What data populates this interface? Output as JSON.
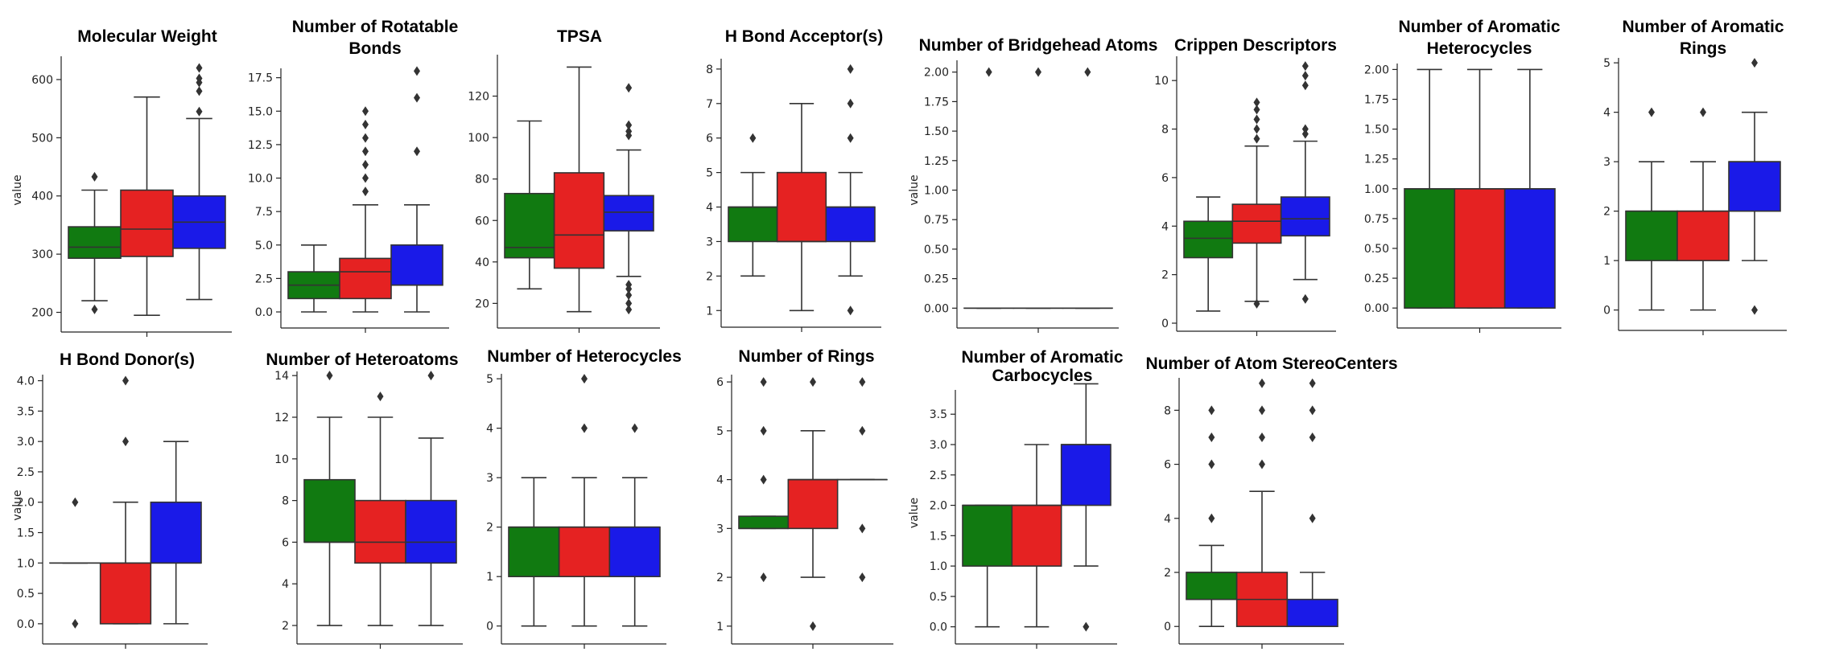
{
  "colors": {
    "green": "#117a11",
    "red": "#e52222",
    "blue": "#1a1ae8",
    "line": "#333333"
  },
  "chart_data": [
    {
      "type": "box",
      "title_lines": [
        "Molecular Weight"
      ],
      "ylabel": "value",
      "ylim": [
        180,
        640
      ],
      "yticks": [
        {
          "v": 200,
          "t": "200"
        },
        {
          "v": 300,
          "t": "300"
        },
        {
          "v": 400,
          "t": "400"
        },
        {
          "v": 500,
          "t": "500"
        },
        {
          "v": 600,
          "t": "600"
        }
      ],
      "boxes": [
        {
          "color": "green",
          "q1": 293,
          "median": 312,
          "q3": 347,
          "wlo": 220,
          "whi": 410,
          "out": [
            205,
            433
          ]
        },
        {
          "color": "red",
          "q1": 296,
          "median": 343,
          "q3": 410,
          "wlo": 195,
          "whi": 570,
          "out": []
        },
        {
          "color": "blue",
          "q1": 310,
          "median": 355,
          "q3": 400,
          "wlo": 222,
          "whi": 533,
          "out": [
            545,
            580,
            595,
            602,
            620
          ]
        }
      ]
    },
    {
      "type": "box",
      "title_lines": [
        "Number of Rotatable",
        "Bonds"
      ],
      "ylabel": "",
      "ylim": [
        -0.6,
        18.2
      ],
      "yticks": [
        {
          "v": 0,
          "t": "0.0"
        },
        {
          "v": 2.5,
          "t": "2.5"
        },
        {
          "v": 5,
          "t": "5.0"
        },
        {
          "v": 7.5,
          "t": "7.5"
        },
        {
          "v": 10,
          "t": "10.0"
        },
        {
          "v": 12.5,
          "t": "12.5"
        },
        {
          "v": 15,
          "t": "15.0"
        },
        {
          "v": 17.5,
          "t": "17.5"
        }
      ],
      "boxes": [
        {
          "color": "green",
          "q1": 1,
          "median": 2,
          "q3": 3,
          "wlo": 0,
          "whi": 5,
          "out": []
        },
        {
          "color": "red",
          "q1": 1,
          "median": 3,
          "q3": 4,
          "wlo": 0,
          "whi": 8,
          "out": [
            9,
            10,
            11,
            12,
            13,
            14,
            15
          ]
        },
        {
          "color": "blue",
          "q1": 2,
          "median": 2,
          "q3": 5,
          "wlo": 0,
          "whi": 8,
          "out": [
            12,
            16,
            18
          ]
        }
      ]
    },
    {
      "type": "box",
      "title_lines": [
        "TPSA"
      ],
      "ylabel": "",
      "ylim": [
        12,
        140
      ],
      "yticks": [
        {
          "v": 20,
          "t": "20"
        },
        {
          "v": 40,
          "t": "40"
        },
        {
          "v": 60,
          "t": "60"
        },
        {
          "v": 80,
          "t": "80"
        },
        {
          "v": 100,
          "t": "100"
        },
        {
          "v": 120,
          "t": "120"
        }
      ],
      "boxes": [
        {
          "color": "green",
          "q1": 42,
          "median": 47,
          "q3": 73,
          "wlo": 27,
          "whi": 108,
          "out": []
        },
        {
          "color": "red",
          "q1": 37,
          "median": 53,
          "q3": 83,
          "wlo": 16,
          "whi": 134,
          "out": []
        },
        {
          "color": "blue",
          "q1": 55,
          "median": 64,
          "q3": 72,
          "wlo": 33,
          "whi": 94,
          "out": [
            17,
            20,
            24,
            27,
            29,
            101,
            103,
            106,
            124
          ]
        }
      ]
    },
    {
      "type": "box",
      "title_lines": [
        "H Bond Acceptor(s)"
      ],
      "ylabel": "",
      "ylim": [
        0.75,
        8.3
      ],
      "yticks": [
        {
          "v": 1,
          "t": "1"
        },
        {
          "v": 2,
          "t": "2"
        },
        {
          "v": 3,
          "t": "3"
        },
        {
          "v": 4,
          "t": "4"
        },
        {
          "v": 5,
          "t": "5"
        },
        {
          "v": 6,
          "t": "6"
        },
        {
          "v": 7,
          "t": "7"
        },
        {
          "v": 8,
          "t": "8"
        }
      ],
      "boxes": [
        {
          "color": "green",
          "q1": 3,
          "median": 4,
          "q3": 4,
          "wlo": 2,
          "whi": 5,
          "out": [
            6
          ]
        },
        {
          "color": "red",
          "q1": 3,
          "median": 3,
          "q3": 5,
          "wlo": 1,
          "whi": 7,
          "out": []
        },
        {
          "color": "blue",
          "q1": 3,
          "median": 4,
          "q3": 4,
          "wlo": 2,
          "whi": 5,
          "out": [
            1,
            6,
            7,
            8
          ]
        }
      ]
    },
    {
      "type": "box",
      "title_lines": [
        "Number of Bridgehead Atoms"
      ],
      "ylabel": "value",
      "ylim": [
        -0.1,
        2.1
      ],
      "yticks": [
        {
          "v": 0,
          "t": "0.00"
        },
        {
          "v": 0.25,
          "t": "0.25"
        },
        {
          "v": 0.5,
          "t": "0.50"
        },
        {
          "v": 0.75,
          "t": "0.75"
        },
        {
          "v": 1,
          "t": "1.00"
        },
        {
          "v": 1.25,
          "t": "1.25"
        },
        {
          "v": 1.5,
          "t": "1.50"
        },
        {
          "v": 1.75,
          "t": "1.75"
        },
        {
          "v": 2,
          "t": "2.00"
        }
      ],
      "boxes": [
        {
          "color": "green",
          "q1": 0,
          "median": 0,
          "q3": 0,
          "wlo": 0,
          "whi": 0,
          "out": [
            2
          ]
        },
        {
          "color": "red",
          "q1": 0,
          "median": 0,
          "q3": 0,
          "wlo": 0,
          "whi": 0,
          "out": [
            2
          ]
        },
        {
          "color": "blue",
          "q1": 0,
          "median": 0,
          "q3": 0,
          "wlo": 0,
          "whi": 0,
          "out": [
            2
          ]
        }
      ]
    },
    {
      "type": "box",
      "title_lines": [
        "Crippen Descriptors"
      ],
      "ylabel": "",
      "ylim": [
        0,
        11
      ],
      "yticks": [
        {
          "v": 0,
          "t": "0"
        },
        {
          "v": 2,
          "t": "2"
        },
        {
          "v": 4,
          "t": "4"
        },
        {
          "v": 6,
          "t": "6"
        },
        {
          "v": 8,
          "t": "8"
        },
        {
          "v": 10,
          "t": "10"
        }
      ],
      "boxes": [
        {
          "color": "green",
          "q1": 2.7,
          "median": 3.5,
          "q3": 4.2,
          "wlo": 0.5,
          "whi": 5.2,
          "out": []
        },
        {
          "color": "red",
          "q1": 3.3,
          "median": 4.2,
          "q3": 4.9,
          "wlo": 0.9,
          "whi": 7.3,
          "out": [
            0.8,
            7.6,
            8.0,
            8.4,
            8.8,
            9.1
          ]
        },
        {
          "color": "blue",
          "q1": 3.6,
          "median": 4.3,
          "q3": 5.2,
          "wlo": 1.8,
          "whi": 7.5,
          "out": [
            1.0,
            7.8,
            8.0,
            9.8,
            10.2,
            10.6
          ]
        }
      ]
    },
    {
      "type": "box",
      "title_lines": [
        "Number of Aromatic",
        "Heterocycles"
      ],
      "ylabel": "",
      "ylim": [
        -0.1,
        2.05
      ],
      "yticks": [
        {
          "v": 0,
          "t": "0.00"
        },
        {
          "v": 0.25,
          "t": "0.25"
        },
        {
          "v": 0.5,
          "t": "0.50"
        },
        {
          "v": 0.75,
          "t": "0.75"
        },
        {
          "v": 1,
          "t": "1.00"
        },
        {
          "v": 1.25,
          "t": "1.25"
        },
        {
          "v": 1.5,
          "t": "1.50"
        },
        {
          "v": 1.75,
          "t": "1.75"
        },
        {
          "v": 2,
          "t": "2.00"
        }
      ],
      "boxes": [
        {
          "color": "green",
          "q1": 0,
          "median": 1,
          "q3": 1,
          "wlo": 0,
          "whi": 2,
          "out": []
        },
        {
          "color": "red",
          "q1": 0,
          "median": 1,
          "q3": 1,
          "wlo": 0,
          "whi": 2,
          "out": []
        },
        {
          "color": "blue",
          "q1": 0,
          "median": 1,
          "q3": 1,
          "wlo": 0,
          "whi": 2,
          "out": []
        }
      ]
    },
    {
      "type": "box",
      "title_lines": [
        "Number of Aromatic",
        "Rings"
      ],
      "ylabel": "",
      "ylim": [
        -0.25,
        5.1
      ],
      "yticks": [
        {
          "v": 0,
          "t": "0"
        },
        {
          "v": 1,
          "t": "1"
        },
        {
          "v": 2,
          "t": "2"
        },
        {
          "v": 3,
          "t": "3"
        },
        {
          "v": 4,
          "t": "4"
        },
        {
          "v": 5,
          "t": "5"
        }
      ],
      "boxes": [
        {
          "color": "green",
          "q1": 1,
          "median": 2,
          "q3": 2,
          "wlo": 0,
          "whi": 3,
          "out": [
            4
          ]
        },
        {
          "color": "red",
          "q1": 1,
          "median": 2,
          "q3": 2,
          "wlo": 0,
          "whi": 3,
          "out": [
            4
          ]
        },
        {
          "color": "blue",
          "q1": 2,
          "median": 3,
          "q3": 3,
          "wlo": 1,
          "whi": 4,
          "out": [
            0,
            5
          ]
        }
      ]
    },
    {
      "type": "box",
      "title_lines": [
        "H Bond Donor(s)"
      ],
      "ylabel": "value",
      "ylim": [
        -0.2,
        4.1
      ],
      "yticks": [
        {
          "v": 0,
          "t": "0.0"
        },
        {
          "v": 0.5,
          "t": "0.5"
        },
        {
          "v": 1,
          "t": "1.0"
        },
        {
          "v": 1.5,
          "t": "1.5"
        },
        {
          "v": 2,
          "t": "2.0"
        },
        {
          "v": 2.5,
          "t": "2.5"
        },
        {
          "v": 3,
          "t": "3.0"
        },
        {
          "v": 3.5,
          "t": "3.5"
        },
        {
          "v": 4,
          "t": "4.0"
        }
      ],
      "boxes": [
        {
          "color": "green",
          "q1": 1,
          "median": 1,
          "q3": 1,
          "wlo": 1,
          "whi": 1,
          "out": [
            0,
            2
          ]
        },
        {
          "color": "red",
          "q1": 0,
          "median": 1,
          "q3": 1,
          "wlo": 0,
          "whi": 2,
          "out": [
            3,
            4
          ]
        },
        {
          "color": "blue",
          "q1": 1,
          "median": 1,
          "q3": 2,
          "wlo": 0,
          "whi": 3,
          "out": []
        }
      ]
    },
    {
      "type": "box",
      "title_lines": [
        "Number of Heteroatoms"
      ],
      "ylabel": "",
      "ylim": [
        1.5,
        14.2
      ],
      "yticks": [
        {
          "v": 2,
          "t": "2"
        },
        {
          "v": 4,
          "t": "4"
        },
        {
          "v": 6,
          "t": "6"
        },
        {
          "v": 8,
          "t": "8"
        },
        {
          "v": 10,
          "t": "10"
        },
        {
          "v": 12,
          "t": "12"
        },
        {
          "v": 14,
          "t": "14"
        }
      ],
      "boxes": [
        {
          "color": "green",
          "q1": 6,
          "median": 6,
          "q3": 9,
          "wlo": 2,
          "whi": 12,
          "out": [
            14
          ]
        },
        {
          "color": "red",
          "q1": 5,
          "median": 6,
          "q3": 8,
          "wlo": 2,
          "whi": 12,
          "out": [
            13
          ]
        },
        {
          "color": "blue",
          "q1": 5,
          "median": 6,
          "q3": 8,
          "wlo": 2,
          "whi": 11,
          "out": [
            14
          ]
        }
      ]
    },
    {
      "type": "box",
      "title_lines": [
        "Number of Heterocycles"
      ],
      "ylabel": "",
      "ylim": [
        -0.2,
        5.1
      ],
      "yticks": [
        {
          "v": 0,
          "t": "0"
        },
        {
          "v": 1,
          "t": "1"
        },
        {
          "v": 2,
          "t": "2"
        },
        {
          "v": 3,
          "t": "3"
        },
        {
          "v": 4,
          "t": "4"
        },
        {
          "v": 5,
          "t": "5"
        }
      ],
      "boxes": [
        {
          "color": "green",
          "q1": 1,
          "median": 2,
          "q3": 2,
          "wlo": 0,
          "whi": 3,
          "out": []
        },
        {
          "color": "red",
          "q1": 1,
          "median": 2,
          "q3": 2,
          "wlo": 0,
          "whi": 3,
          "out": [
            4,
            5
          ]
        },
        {
          "color": "blue",
          "q1": 1,
          "median": 2,
          "q3": 2,
          "wlo": 0,
          "whi": 3,
          "out": [
            4
          ]
        }
      ]
    },
    {
      "type": "box",
      "title_lines": [
        "Number of Rings"
      ],
      "ylabel": "",
      "ylim": [
        0.8,
        6.15
      ],
      "yticks": [
        {
          "v": 1,
          "t": "1"
        },
        {
          "v": 2,
          "t": "2"
        },
        {
          "v": 3,
          "t": "3"
        },
        {
          "v": 4,
          "t": "4"
        },
        {
          "v": 5,
          "t": "5"
        },
        {
          "v": 6,
          "t": "6"
        }
      ],
      "boxes": [
        {
          "color": "green",
          "q1": 3,
          "median": 3,
          "q3": 3.25,
          "wlo": 3,
          "whi": 3.25,
          "out": [
            2,
            4,
            5,
            6
          ]
        },
        {
          "color": "red",
          "q1": 3,
          "median": 4,
          "q3": 4,
          "wlo": 2,
          "whi": 5,
          "out": [
            1,
            6
          ]
        },
        {
          "color": "blue",
          "q1": 4,
          "median": 4,
          "q3": 4,
          "wlo": 4,
          "whi": 4,
          "out": [
            2,
            3,
            5,
            6
          ]
        }
      ]
    },
    {
      "type": "box",
      "title_lines": [
        "Number of Aromatic",
        "Carbocycles"
      ],
      "ylabel": "value",
      "ylim": [
        -0.15,
        3.9
      ],
      "yticks": [
        {
          "v": 0,
          "t": "0.0"
        },
        {
          "v": 0.5,
          "t": "0.5"
        },
        {
          "v": 1,
          "t": "1.0"
        },
        {
          "v": 1.5,
          "t": "1.5"
        },
        {
          "v": 2,
          "t": "2.0"
        },
        {
          "v": 2.5,
          "t": "2.5"
        },
        {
          "v": 3,
          "t": "3.0"
        },
        {
          "v": 3.5,
          "t": "3.5"
        }
      ],
      "boxes": [
        {
          "color": "green",
          "q1": 1,
          "median": 2,
          "q3": 2,
          "wlo": 0,
          "whi": 2,
          "out": []
        },
        {
          "color": "red",
          "q1": 1,
          "median": 2,
          "q3": 2,
          "wlo": 0,
          "whi": 3,
          "out": []
        },
        {
          "color": "blue",
          "q1": 2,
          "median": 3,
          "q3": 3,
          "wlo": 1,
          "whi": 4,
          "out": [
            0
          ]
        }
      ]
    },
    {
      "type": "box",
      "title_lines": [
        "Number of Atom StereoCenters"
      ],
      "ylabel": "",
      "ylim": [
        -0.35,
        9.2
      ],
      "yticks": [
        {
          "v": 0,
          "t": "0"
        },
        {
          "v": 2,
          "t": "2"
        },
        {
          "v": 4,
          "t": "4"
        },
        {
          "v": 6,
          "t": "6"
        },
        {
          "v": 8,
          "t": "8"
        }
      ],
      "boxes": [
        {
          "color": "green",
          "q1": 1,
          "median": 2,
          "q3": 2,
          "wlo": 0,
          "whi": 3,
          "out": [
            4,
            6,
            7,
            8
          ]
        },
        {
          "color": "red",
          "q1": 0,
          "median": 1,
          "q3": 2,
          "wlo": 0,
          "whi": 5,
          "out": [
            6,
            7,
            8,
            9
          ]
        },
        {
          "color": "blue",
          "q1": 0,
          "median": 0,
          "q3": 1,
          "wlo": 0,
          "whi": 2,
          "out": [
            4,
            7,
            8,
            9
          ]
        }
      ]
    }
  ]
}
